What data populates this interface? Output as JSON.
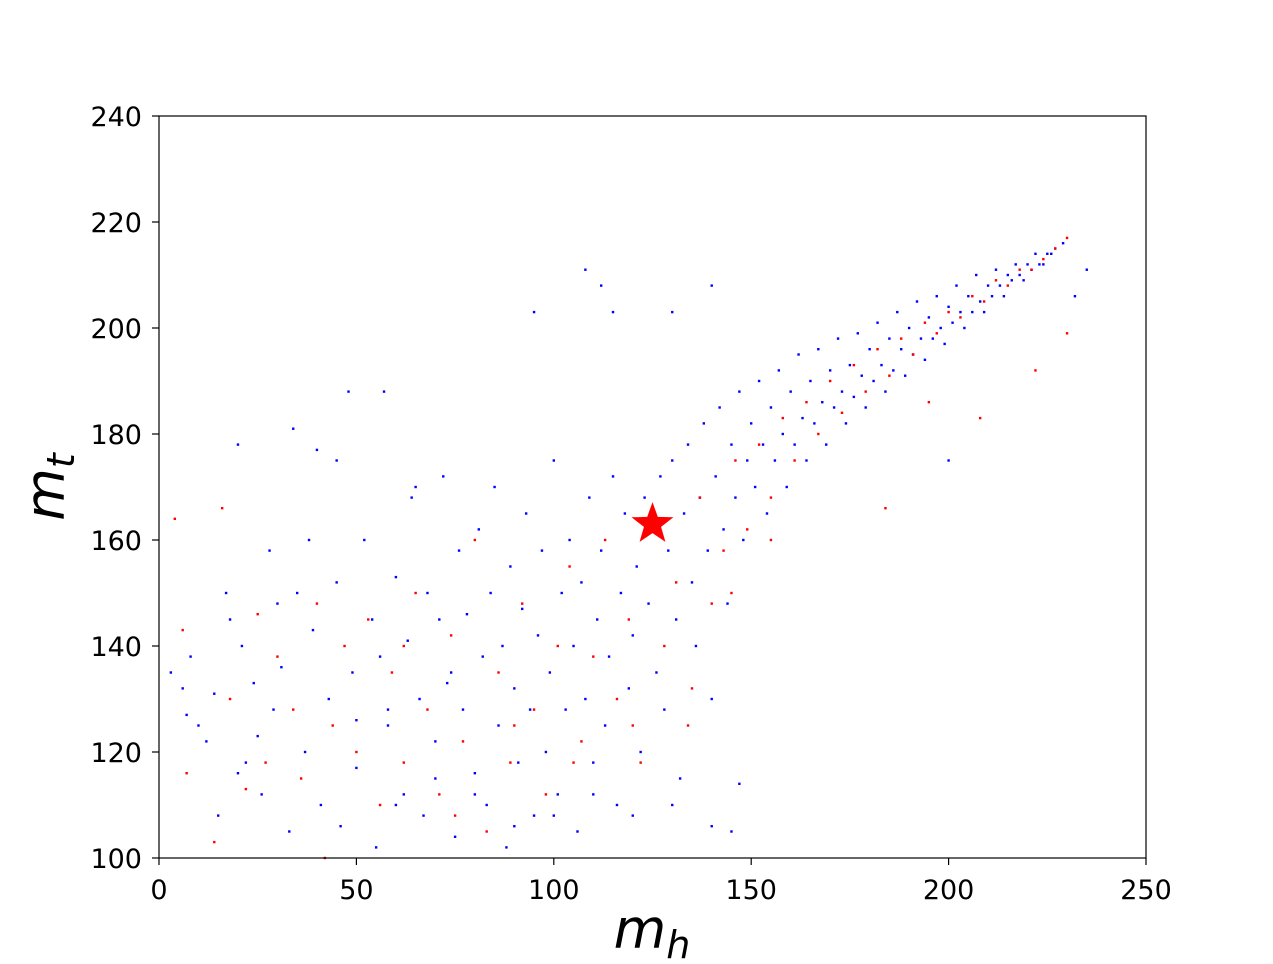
{
  "chart_data": {
    "type": "scatter",
    "title": "",
    "xlabel": {
      "base": "m",
      "sub": "h"
    },
    "ylabel": {
      "base": "m",
      "sub": "t"
    },
    "xlim": [
      0,
      250
    ],
    "ylim": [
      100,
      240
    ],
    "xticks": [
      "0",
      "50",
      "100",
      "150",
      "200",
      "250"
    ],
    "yticks": [
      "100",
      "120",
      "140",
      "160",
      "180",
      "200",
      "220",
      "240"
    ],
    "grid": false,
    "legend": "none",
    "series": [
      {
        "color": "#0000ff",
        "marker": "dot",
        "points": [
          [
            3,
            135
          ],
          [
            6,
            132
          ],
          [
            7,
            127
          ],
          [
            8,
            138
          ],
          [
            10,
            125
          ],
          [
            12,
            122
          ],
          [
            14,
            131
          ],
          [
            15,
            108
          ],
          [
            17,
            150
          ],
          [
            18,
            145
          ],
          [
            20,
            178
          ],
          [
            21,
            140
          ],
          [
            22,
            118
          ],
          [
            24,
            133
          ],
          [
            26,
            112
          ],
          [
            28,
            158
          ],
          [
            29,
            128
          ],
          [
            31,
            136
          ],
          [
            33,
            105
          ],
          [
            34,
            181
          ],
          [
            35,
            150
          ],
          [
            37,
            120
          ],
          [
            39,
            143
          ],
          [
            40,
            177
          ],
          [
            41,
            110
          ],
          [
            43,
            130
          ],
          [
            45,
            152
          ],
          [
            46,
            106
          ],
          [
            48,
            188
          ],
          [
            49,
            135
          ],
          [
            50,
            117
          ],
          [
            52,
            160
          ],
          [
            54,
            145
          ],
          [
            55,
            102
          ],
          [
            56,
            138
          ],
          [
            57,
            188
          ],
          [
            58,
            125
          ],
          [
            60,
            153
          ],
          [
            62,
            112
          ],
          [
            63,
            141
          ],
          [
            64,
            168
          ],
          [
            66,
            130
          ],
          [
            67,
            108
          ],
          [
            68,
            150
          ],
          [
            70,
            122
          ],
          [
            71,
            145
          ],
          [
            72,
            172
          ],
          [
            74,
            135
          ],
          [
            75,
            104
          ],
          [
            76,
            158
          ],
          [
            77,
            128
          ],
          [
            78,
            146
          ],
          [
            80,
            116
          ],
          [
            81,
            162
          ],
          [
            82,
            138
          ],
          [
            83,
            110
          ],
          [
            84,
            150
          ],
          [
            85,
            170
          ],
          [
            86,
            125
          ],
          [
            87,
            140
          ],
          [
            88,
            102
          ],
          [
            89,
            155
          ],
          [
            90,
            132
          ],
          [
            91,
            118
          ],
          [
            92,
            147
          ],
          [
            93,
            165
          ],
          [
            94,
            128
          ],
          [
            95,
            108
          ],
          [
            96,
            142
          ],
          [
            97,
            158
          ],
          [
            98,
            120
          ],
          [
            99,
            135
          ],
          [
            100,
            175
          ],
          [
            101,
            112
          ],
          [
            102,
            150
          ],
          [
            103,
            128
          ],
          [
            104,
            160
          ],
          [
            105,
            140
          ],
          [
            106,
            105
          ],
          [
            107,
            152
          ],
          [
            108,
            130
          ],
          [
            109,
            168
          ],
          [
            110,
            118
          ],
          [
            111,
            145
          ],
          [
            112,
            158
          ],
          [
            113,
            125
          ],
          [
            114,
            138
          ],
          [
            115,
            172
          ],
          [
            116,
            110
          ],
          [
            117,
            150
          ],
          [
            118,
            165
          ],
          [
            119,
            132
          ],
          [
            120,
            142
          ],
          [
            121,
            155
          ],
          [
            122,
            120
          ],
          [
            123,
            168
          ],
          [
            124,
            148
          ],
          [
            125,
            162
          ],
          [
            126,
            135
          ],
          [
            127,
            172
          ],
          [
            128,
            128
          ],
          [
            129,
            158
          ],
          [
            130,
            175
          ],
          [
            131,
            145
          ],
          [
            132,
            115
          ],
          [
            133,
            165
          ],
          [
            134,
            178
          ],
          [
            135,
            152
          ],
          [
            136,
            140
          ],
          [
            137,
            168
          ],
          [
            138,
            182
          ],
          [
            139,
            158
          ],
          [
            140,
            130
          ],
          [
            141,
            172
          ],
          [
            142,
            185
          ],
          [
            143,
            162
          ],
          [
            144,
            148
          ],
          [
            145,
            178
          ],
          [
            146,
            168
          ],
          [
            147,
            188
          ],
          [
            148,
            160
          ],
          [
            149,
            175
          ],
          [
            150,
            182
          ],
          [
            151,
            170
          ],
          [
            152,
            190
          ],
          [
            153,
            178
          ],
          [
            154,
            165
          ],
          [
            155,
            185
          ],
          [
            156,
            175
          ],
          [
            157,
            192
          ],
          [
            158,
            180
          ],
          [
            159,
            170
          ],
          [
            160,
            188
          ],
          [
            161,
            178
          ],
          [
            162,
            195
          ],
          [
            163,
            183
          ],
          [
            164,
            175
          ],
          [
            165,
            190
          ],
          [
            166,
            182
          ],
          [
            167,
            196
          ],
          [
            168,
            186
          ],
          [
            169,
            178
          ],
          [
            170,
            192
          ],
          [
            171,
            185
          ],
          [
            172,
            198
          ],
          [
            173,
            188
          ],
          [
            174,
            182
          ],
          [
            175,
            193
          ],
          [
            176,
            187
          ],
          [
            177,
            199
          ],
          [
            178,
            191
          ],
          [
            179,
            185
          ],
          [
            180,
            196
          ],
          [
            181,
            190
          ],
          [
            182,
            201
          ],
          [
            183,
            193
          ],
          [
            184,
            188
          ],
          [
            185,
            198
          ],
          [
            186,
            192
          ],
          [
            187,
            203
          ],
          [
            188,
            196
          ],
          [
            189,
            191
          ],
          [
            190,
            200
          ],
          [
            191,
            195
          ],
          [
            192,
            205
          ],
          [
            193,
            198
          ],
          [
            194,
            194
          ],
          [
            195,
            202
          ],
          [
            196,
            198
          ],
          [
            197,
            206
          ],
          [
            198,
            200
          ],
          [
            199,
            197
          ],
          [
            200,
            204
          ],
          [
            201,
            201
          ],
          [
            202,
            208
          ],
          [
            203,
            203
          ],
          [
            204,
            200
          ],
          [
            205,
            206
          ],
          [
            206,
            203
          ],
          [
            207,
            210
          ],
          [
            208,
            205
          ],
          [
            209,
            203
          ],
          [
            210,
            208
          ],
          [
            211,
            206
          ],
          [
            212,
            211
          ],
          [
            213,
            208
          ],
          [
            214,
            206
          ],
          [
            215,
            210
          ],
          [
            216,
            209
          ],
          [
            217,
            212
          ],
          [
            218,
            210
          ],
          [
            219,
            209
          ],
          [
            220,
            212
          ],
          [
            221,
            211
          ],
          [
            222,
            214
          ],
          [
            223,
            212
          ],
          [
            224,
            212
          ],
          [
            225,
            214
          ],
          [
            226,
            214
          ],
          [
            227,
            215
          ],
          [
            229,
            216
          ],
          [
            232,
            206
          ],
          [
            235,
            211
          ],
          [
            200,
            175
          ],
          [
            140,
            208
          ],
          [
            130,
            203
          ],
          [
            115,
            203
          ],
          [
            108,
            211
          ],
          [
            112,
            208
          ],
          [
            95,
            203
          ],
          [
            60,
            110
          ],
          [
            70,
            115
          ],
          [
            80,
            112
          ],
          [
            90,
            106
          ],
          [
            100,
            108
          ],
          [
            110,
            112
          ],
          [
            120,
            108
          ],
          [
            130,
            110
          ],
          [
            140,
            106
          ],
          [
            145,
            105
          ],
          [
            147,
            114
          ],
          [
            65,
            170
          ],
          [
            45,
            175
          ],
          [
            38,
            160
          ],
          [
            30,
            148
          ],
          [
            25,
            123
          ],
          [
            20,
            116
          ],
          [
            50,
            126
          ],
          [
            73,
            133
          ],
          [
            58,
            128
          ]
        ]
      },
      {
        "color": "#ff0000",
        "marker": "dot",
        "points": [
          [
            4,
            164
          ],
          [
            6,
            143
          ],
          [
            7,
            116
          ],
          [
            14,
            103
          ],
          [
            16,
            166
          ],
          [
            18,
            130
          ],
          [
            22,
            113
          ],
          [
            25,
            146
          ],
          [
            27,
            118
          ],
          [
            30,
            138
          ],
          [
            34,
            128
          ],
          [
            36,
            115
          ],
          [
            40,
            148
          ],
          [
            42,
            100
          ],
          [
            44,
            125
          ],
          [
            47,
            140
          ],
          [
            50,
            120
          ],
          [
            53,
            145
          ],
          [
            56,
            110
          ],
          [
            59,
            135
          ],
          [
            62,
            118
          ],
          [
            65,
            150
          ],
          [
            68,
            128
          ],
          [
            71,
            112
          ],
          [
            74,
            142
          ],
          [
            77,
            122
          ],
          [
            80,
            160
          ],
          [
            83,
            105
          ],
          [
            86,
            135
          ],
          [
            89,
            118
          ],
          [
            92,
            148
          ],
          [
            95,
            128
          ],
          [
            98,
            112
          ],
          [
            101,
            140
          ],
          [
            104,
            155
          ],
          [
            107,
            122
          ],
          [
            110,
            138
          ],
          [
            113,
            160
          ],
          [
            116,
            130
          ],
          [
            119,
            145
          ],
          [
            122,
            118
          ],
          [
            125,
            165
          ],
          [
            128,
            140
          ],
          [
            131,
            152
          ],
          [
            134,
            125
          ],
          [
            137,
            168
          ],
          [
            140,
            148
          ],
          [
            143,
            158
          ],
          [
            146,
            175
          ],
          [
            149,
            162
          ],
          [
            152,
            178
          ],
          [
            155,
            168
          ],
          [
            158,
            183
          ],
          [
            161,
            175
          ],
          [
            164,
            186
          ],
          [
            167,
            180
          ],
          [
            170,
            190
          ],
          [
            173,
            184
          ],
          [
            176,
            193
          ],
          [
            179,
            188
          ],
          [
            182,
            196
          ],
          [
            185,
            191
          ],
          [
            188,
            198
          ],
          [
            191,
            195
          ],
          [
            194,
            201
          ],
          [
            197,
            199
          ],
          [
            200,
            203
          ],
          [
            203,
            202
          ],
          [
            206,
            206
          ],
          [
            209,
            205
          ],
          [
            212,
            209
          ],
          [
            215,
            208
          ],
          [
            218,
            211
          ],
          [
            221,
            211
          ],
          [
            224,
            213
          ],
          [
            227,
            215
          ],
          [
            230,
            217
          ],
          [
            184,
            166
          ],
          [
            195,
            186
          ],
          [
            208,
            183
          ],
          [
            222,
            192
          ],
          [
            230,
            199
          ],
          [
            155,
            160
          ],
          [
            145,
            150
          ],
          [
            135,
            132
          ],
          [
            120,
            125
          ],
          [
            105,
            118
          ],
          [
            90,
            125
          ],
          [
            75,
            108
          ],
          [
            62,
            140
          ]
        ]
      },
      {
        "name": "",
        "color": "#ff0000",
        "marker": "star",
        "points": [
          [
            125,
            163
          ]
        ]
      }
    ]
  }
}
